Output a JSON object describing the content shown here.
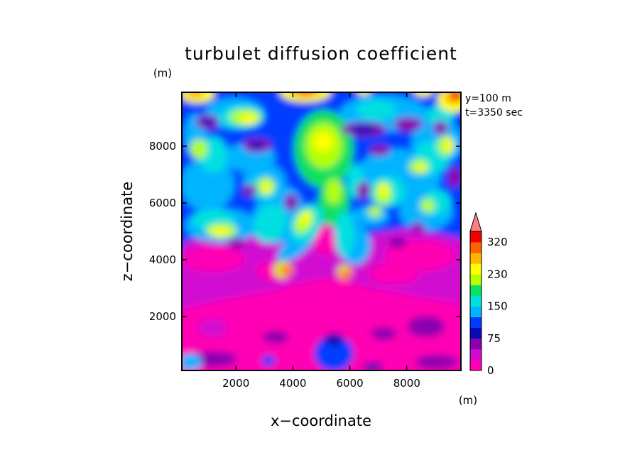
{
  "chart_data": {
    "type": "heatmap",
    "title": "turbulet diffusion coefficient",
    "xlabel": "x−coordinate",
    "ylabel": "z−coordinate",
    "x_unit": "(m)",
    "y_unit": "(m)",
    "annotations": [
      "y=100 m",
      "t=3350 sec"
    ],
    "xlim": [
      100,
      9900
    ],
    "ylim": [
      100,
      9900
    ],
    "x_ticks": [
      2000,
      4000,
      6000,
      8000
    ],
    "y_ticks": [
      2000,
      4000,
      6000,
      8000
    ],
    "x_tick_labels": [
      "2000",
      "4000",
      "6000",
      "8000"
    ],
    "y_tick_labels": [
      "2000",
      "4000",
      "6000",
      "8000"
    ],
    "colorbar": {
      "label_values": [
        0,
        75,
        150,
        230,
        320
      ],
      "labels": [
        "0",
        "75",
        "150",
        "230",
        "320"
      ],
      "levels": [
        0,
        25,
        50,
        75,
        100,
        125,
        150,
        190,
        210,
        230,
        260,
        290,
        320
      ],
      "colors": [
        "#ff00b4",
        "#d00ad0",
        "#8a00b0",
        "#0a0ab5",
        "#003cff",
        "#00b4ff",
        "#00e0e0",
        "#10e060",
        "#b4ff00",
        "#ffff00",
        "#ffb400",
        "#ff6000",
        "#f00000"
      ],
      "extend_max_color": "#ff7f7f"
    }
  }
}
